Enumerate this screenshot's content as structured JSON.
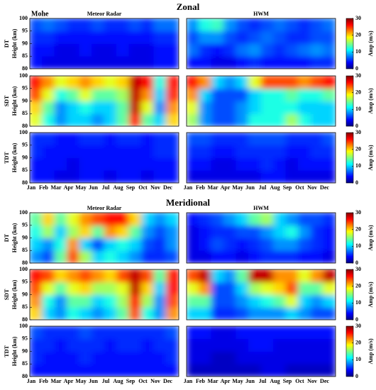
{
  "figure": {
    "station": "Mohe",
    "titles": [
      "Zonal",
      "Meridional"
    ]
  },
  "chart_data": [
    {
      "type": "heatmap",
      "row_label": "DT",
      "ylabel": "Height (km)",
      "title": "Meteor Radar",
      "ylim": [
        80,
        100
      ],
      "yticks": [
        80,
        85,
        90,
        95,
        100
      ],
      "clim": [
        0,
        30
      ],
      "y": [
        82.5,
        87.5,
        92.5,
        97.5
      ],
      "values": [
        [
          4,
          3,
          3,
          3,
          3,
          3,
          3,
          3,
          3,
          3,
          4,
          4
        ],
        [
          4,
          4,
          3,
          3,
          4,
          3,
          3,
          4,
          3,
          3,
          4,
          4
        ],
        [
          5,
          5,
          4,
          4,
          4,
          4,
          4,
          4,
          4,
          4,
          5,
          5
        ],
        [
          6,
          7,
          6,
          5,
          5,
          6,
          5,
          5,
          6,
          5,
          7,
          7
        ]
      ]
    },
    {
      "type": "heatmap",
      "title": "HWM",
      "ylim": [
        80,
        100
      ],
      "clim": [
        0,
        30
      ],
      "cticks": [
        0,
        10,
        20,
        30
      ],
      "colorbar_label": "Amp (m/s)",
      "y": [
        82.5,
        87.5,
        92.5,
        97.5
      ],
      "values": [
        [
          4,
          4,
          3,
          3,
          4,
          5,
          4,
          4,
          4,
          4,
          5,
          5
        ],
        [
          7,
          5,
          4,
          5,
          7,
          8,
          6,
          5,
          6,
          7,
          8,
          7
        ],
        [
          6,
          8,
          8,
          6,
          5,
          6,
          7,
          6,
          5,
          5,
          6,
          6
        ],
        [
          8,
          12,
          13,
          8,
          6,
          5,
          6,
          7,
          6,
          5,
          6,
          7
        ]
      ]
    },
    {
      "type": "heatmap",
      "row_label": "SDT",
      "ylabel": "Height (km)",
      "ylim": [
        80,
        100
      ],
      "yticks": [
        80,
        85,
        90,
        95,
        100
      ],
      "clim": [
        0,
        30
      ],
      "y": [
        82.5,
        87.5,
        92.5,
        97.5
      ],
      "values": [
        [
          18,
          12,
          8,
          10,
          10,
          8,
          10,
          14,
          26,
          14,
          10,
          20
        ],
        [
          20,
          14,
          8,
          10,
          12,
          10,
          10,
          14,
          28,
          18,
          8,
          22
        ],
        [
          24,
          18,
          12,
          14,
          18,
          14,
          14,
          16,
          28,
          22,
          10,
          25
        ],
        [
          26,
          22,
          18,
          20,
          22,
          20,
          18,
          20,
          28,
          26,
          12,
          26
        ]
      ]
    },
    {
      "type": "heatmap",
      "ylim": [
        80,
        100
      ],
      "clim": [
        0,
        30
      ],
      "cticks": [
        0,
        10,
        20,
        30
      ],
      "colorbar_label": "Amp (m/s)",
      "y": [
        82.5,
        87.5,
        92.5,
        97.5
      ],
      "values": [
        [
          16,
          8,
          6,
          6,
          8,
          12,
          12,
          12,
          16,
          12,
          10,
          10
        ],
        [
          18,
          8,
          6,
          6,
          8,
          10,
          12,
          12,
          12,
          10,
          10,
          10
        ],
        [
          22,
          10,
          6,
          6,
          6,
          10,
          12,
          12,
          14,
          12,
          12,
          14
        ],
        [
          26,
          22,
          10,
          8,
          10,
          18,
          24,
          24,
          24,
          22,
          24,
          26
        ]
      ]
    },
    {
      "type": "heatmap",
      "row_label": "TDT",
      "ylabel": "Height (km)",
      "ylim": [
        80,
        100
      ],
      "yticks": [
        80,
        85,
        90,
        95,
        100
      ],
      "clim": [
        0,
        30
      ],
      "y": [
        82.5,
        87.5,
        92.5,
        97.5
      ],
      "categories": [
        "Jan",
        "Feb",
        "Mar",
        "Apr",
        "May",
        "Jun",
        "Jul",
        "Aug",
        "Sep",
        "Oct",
        "Nov",
        "Dec"
      ],
      "values": [
        [
          4,
          4,
          3,
          3,
          4,
          4,
          3,
          4,
          4,
          3,
          4,
          4
        ],
        [
          4,
          4,
          4,
          3,
          4,
          4,
          4,
          4,
          4,
          4,
          4,
          4
        ],
        [
          5,
          4,
          4,
          4,
          4,
          4,
          4,
          4,
          4,
          4,
          5,
          5
        ],
        [
          5,
          5,
          4,
          4,
          5,
          5,
          4,
          5,
          5,
          4,
          5,
          5
        ]
      ]
    },
    {
      "type": "heatmap",
      "ylim": [
        80,
        100
      ],
      "clim": [
        0,
        30
      ],
      "cticks": [
        0,
        10,
        20,
        30
      ],
      "colorbar_label": "Amp (m/s)",
      "y": [
        82.5,
        87.5,
        92.5,
        97.5
      ],
      "categories": [
        "Jan",
        "Feb",
        "Mar",
        "Apr",
        "May",
        "Jun",
        "Jul",
        "Aug",
        "Sep",
        "Oct",
        "Nov",
        "Dec"
      ],
      "values": [
        [
          3,
          3,
          3,
          3,
          3,
          3,
          4,
          4,
          3,
          3,
          3,
          3
        ],
        [
          4,
          4,
          3,
          3,
          4,
          4,
          5,
          4,
          3,
          4,
          4,
          4
        ],
        [
          5,
          5,
          4,
          4,
          5,
          5,
          5,
          5,
          4,
          4,
          5,
          5
        ],
        [
          6,
          6,
          5,
          5,
          5,
          6,
          6,
          6,
          5,
          5,
          5,
          6
        ]
      ]
    },
    {
      "type": "heatmap",
      "row_label": "DT",
      "ylabel": "Height (km)",
      "title": "Meteor Radar",
      "ylim": [
        80,
        100
      ],
      "yticks": [
        80,
        85,
        90,
        95,
        100
      ],
      "clim": [
        0,
        30
      ],
      "y": [
        82.5,
        87.5,
        92.5,
        97.5
      ],
      "values": [
        [
          8,
          6,
          14,
          24,
          16,
          10,
          12,
          10,
          8,
          5,
          5,
          6
        ],
        [
          10,
          8,
          12,
          22,
          10,
          6,
          10,
          12,
          10,
          6,
          5,
          8
        ],
        [
          12,
          16,
          10,
          16,
          20,
          14,
          22,
          20,
          14,
          8,
          6,
          8
        ],
        [
          14,
          20,
          14,
          18,
          22,
          24,
          26,
          26,
          20,
          10,
          8,
          10
        ]
      ]
    },
    {
      "type": "heatmap",
      "title": "HWM",
      "ylim": [
        80,
        100
      ],
      "clim": [
        0,
        30
      ],
      "cticks": [
        0,
        10,
        20,
        30
      ],
      "colorbar_label": "Amp (m/s)",
      "y": [
        82.5,
        87.5,
        92.5,
        97.5
      ],
      "values": [
        [
          3,
          3,
          4,
          4,
          3,
          4,
          5,
          5,
          5,
          4,
          4,
          3
        ],
        [
          3,
          4,
          6,
          5,
          4,
          5,
          6,
          8,
          8,
          6,
          5,
          4
        ],
        [
          3,
          4,
          5,
          5,
          6,
          6,
          8,
          10,
          12,
          8,
          5,
          4
        ],
        [
          4,
          5,
          6,
          8,
          10,
          14,
          16,
          10,
          8,
          6,
          6,
          5
        ]
      ]
    },
    {
      "type": "heatmap",
      "row_label": "SDT",
      "ylabel": "Height (km)",
      "ylim": [
        80,
        100
      ],
      "yticks": [
        80,
        85,
        90,
        95,
        100
      ],
      "clim": [
        0,
        30
      ],
      "y": [
        82.5,
        87.5,
        92.5,
        97.5
      ],
      "values": [
        [
          20,
          10,
          8,
          12,
          10,
          8,
          10,
          14,
          24,
          12,
          8,
          22
        ],
        [
          22,
          12,
          8,
          14,
          14,
          10,
          12,
          16,
          26,
          16,
          8,
          24
        ],
        [
          24,
          18,
          14,
          18,
          20,
          16,
          16,
          18,
          28,
          20,
          10,
          26
        ],
        [
          26,
          24,
          20,
          22,
          24,
          22,
          20,
          24,
          28,
          24,
          14,
          26
        ]
      ]
    },
    {
      "type": "heatmap",
      "ylim": [
        80,
        100
      ],
      "clim": [
        0,
        30
      ],
      "cticks": [
        0,
        10,
        20,
        30
      ],
      "colorbar_label": "Amp (m/s)",
      "y": [
        82.5,
        87.5,
        92.5,
        97.5
      ],
      "values": [
        [
          10,
          10,
          5,
          5,
          6,
          8,
          8,
          8,
          10,
          8,
          6,
          6
        ],
        [
          14,
          14,
          6,
          6,
          8,
          10,
          12,
          14,
          18,
          10,
          8,
          10
        ],
        [
          18,
          22,
          6,
          6,
          10,
          16,
          18,
          20,
          24,
          14,
          14,
          18
        ],
        [
          24,
          28,
          10,
          8,
          14,
          28,
          28,
          22,
          22,
          18,
          22,
          28
        ]
      ]
    },
    {
      "type": "heatmap",
      "row_label": "TDT",
      "ylabel": "Height (km)",
      "ylim": [
        80,
        100
      ],
      "yticks": [
        80,
        85,
        90,
        95,
        100
      ],
      "clim": [
        0,
        30
      ],
      "y": [
        82.5,
        87.5,
        92.5,
        97.5
      ],
      "categories": [
        "Jan",
        "Feb",
        "Mar",
        "Apr",
        "May",
        "Jun",
        "Jul",
        "Aug",
        "Sep",
        "Oct",
        "Nov",
        "Dec"
      ],
      "values": [
        [
          4,
          4,
          4,
          4,
          4,
          4,
          4,
          4,
          4,
          4,
          4,
          4
        ],
        [
          5,
          4,
          4,
          4,
          5,
          4,
          4,
          4,
          4,
          4,
          4,
          5
        ],
        [
          5,
          5,
          4,
          5,
          5,
          5,
          4,
          5,
          5,
          4,
          5,
          5
        ],
        [
          6,
          5,
          5,
          5,
          6,
          5,
          5,
          5,
          5,
          5,
          5,
          6
        ]
      ]
    },
    {
      "type": "heatmap",
      "ylim": [
        80,
        100
      ],
      "clim": [
        0,
        30
      ],
      "cticks": [
        0,
        10,
        20,
        30
      ],
      "colorbar_label": "Amp (m/s)",
      "y": [
        82.5,
        87.5,
        92.5,
        97.5
      ],
      "categories": [
        "Jan",
        "Feb",
        "Mar",
        "Apr",
        "May",
        "Jun",
        "Jul",
        "Aug",
        "Sep",
        "Oct",
        "Nov",
        "Dec"
      ],
      "values": [
        [
          2,
          2,
          2,
          2,
          2,
          2,
          3,
          3,
          2,
          2,
          2,
          2
        ],
        [
          3,
          3,
          2,
          2,
          3,
          3,
          3,
          3,
          3,
          3,
          3,
          3
        ],
        [
          3,
          3,
          3,
          3,
          3,
          4,
          4,
          3,
          3,
          3,
          3,
          3
        ],
        [
          4,
          4,
          3,
          3,
          4,
          4,
          4,
          4,
          4,
          4,
          4,
          4
        ]
      ]
    }
  ]
}
